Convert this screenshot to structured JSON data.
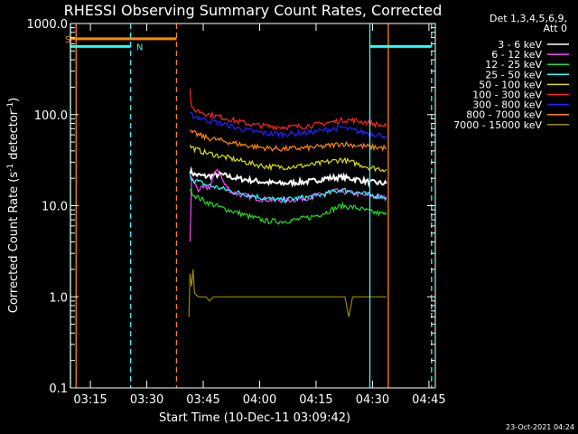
{
  "chart_data": {
    "type": "line",
    "title": "RHESSI Observing Summary Count Rates, Corrected",
    "xlabel": "Start Time (10-Dec-11 03:09:42)",
    "ylabel_parts": [
      "Corrected Count Rate (s",
      "-1",
      " detector",
      "-1",
      ")"
    ],
    "ylog": true,
    "ylim": [
      0.1,
      1000
    ],
    "xlim_minutes": [
      0,
      97
    ],
    "x_tick_minutes": [
      5.3,
      20.3,
      35.3,
      50.3,
      65.3,
      80.3,
      95.3
    ],
    "x_tick_labels": [
      "03:15",
      "03:30",
      "03:45",
      "04:00",
      "04:15",
      "04:30",
      "04:45"
    ],
    "y_tick_values": [
      1000,
      100,
      10,
      1,
      0.1
    ],
    "y_tick_labels": [
      "1000.0",
      "100.0",
      "10.0",
      "1.0",
      "0.1"
    ],
    "legend_header": [
      "Det 1,3,4,5,6,9,",
      "Att 0"
    ],
    "series": [
      {
        "name": "3 - 6 keV",
        "color": "#ffffff",
        "points": [
          [
            31.8,
            24
          ],
          [
            33,
            22
          ],
          [
            36,
            21
          ],
          [
            40,
            22
          ],
          [
            44,
            20
          ],
          [
            48,
            19
          ],
          [
            52,
            18
          ],
          [
            56,
            17.5
          ],
          [
            60,
            18
          ],
          [
            64,
            18.5
          ],
          [
            68,
            20
          ],
          [
            72,
            20.5
          ],
          [
            76,
            19.5
          ],
          [
            80,
            18
          ],
          [
            84,
            17.5
          ]
        ]
      },
      {
        "name": "6 - 12 keV",
        "color": "#ff44ff",
        "points": [
          [
            31.8,
            4
          ],
          [
            32.2,
            20
          ],
          [
            34,
            15
          ],
          [
            37,
            16
          ],
          [
            39,
            26
          ],
          [
            41,
            17
          ],
          [
            43,
            14
          ],
          [
            46,
            13
          ],
          [
            50,
            12
          ],
          [
            54,
            11.5
          ],
          [
            58,
            11.5
          ],
          [
            62,
            12
          ],
          [
            66,
            13
          ],
          [
            70,
            14.5
          ],
          [
            74,
            14
          ],
          [
            78,
            13
          ],
          [
            82,
            12.5
          ],
          [
            84,
            12
          ]
        ]
      },
      {
        "name": "12 - 25 keV",
        "color": "#22dd22",
        "points": [
          [
            31.8,
            15
          ],
          [
            33,
            13
          ],
          [
            36,
            11
          ],
          [
            40,
            9.5
          ],
          [
            44,
            8.5
          ],
          [
            48,
            7.5
          ],
          [
            52,
            6.8
          ],
          [
            56,
            6.7
          ],
          [
            60,
            7
          ],
          [
            64,
            7.5
          ],
          [
            68,
            8.5
          ],
          [
            72,
            10
          ],
          [
            76,
            9.5
          ],
          [
            80,
            8.5
          ],
          [
            84,
            8
          ]
        ]
      },
      {
        "name": "25 - 50 keV",
        "color": "#22ffff",
        "points": [
          [
            31.8,
            21
          ],
          [
            33,
            19
          ],
          [
            36,
            17
          ],
          [
            40,
            15.5
          ],
          [
            44,
            14
          ],
          [
            48,
            13
          ],
          [
            52,
            12
          ],
          [
            56,
            11.5
          ],
          [
            60,
            12
          ],
          [
            64,
            12.5
          ],
          [
            68,
            13.5
          ],
          [
            72,
            15
          ],
          [
            76,
            14
          ],
          [
            80,
            13
          ],
          [
            84,
            12.5
          ]
        ]
      },
      {
        "name": "50 - 100 keV",
        "color": "#dddd00",
        "points": [
          [
            31.8,
            45
          ],
          [
            33,
            42
          ],
          [
            36,
            38
          ],
          [
            40,
            35
          ],
          [
            44,
            32
          ],
          [
            48,
            29
          ],
          [
            52,
            27
          ],
          [
            56,
            26.5
          ],
          [
            60,
            27
          ],
          [
            64,
            28
          ],
          [
            68,
            30
          ],
          [
            72,
            32
          ],
          [
            76,
            29
          ],
          [
            80,
            26
          ],
          [
            84,
            25
          ]
        ]
      },
      {
        "name": "100 - 300 keV",
        "color": "#ff2222",
        "points": [
          [
            31.8,
            190
          ],
          [
            32.2,
            115
          ],
          [
            34,
            110
          ],
          [
            37,
            100
          ],
          [
            41,
            92
          ],
          [
            45,
            83
          ],
          [
            49,
            77
          ],
          [
            53,
            74
          ],
          [
            57,
            73
          ],
          [
            61,
            74
          ],
          [
            65,
            77
          ],
          [
            69,
            82
          ],
          [
            73,
            88
          ],
          [
            76,
            86
          ],
          [
            80,
            80
          ],
          [
            84,
            74
          ]
        ]
      },
      {
        "name": "300 - 800 keV",
        "color": "#2222ff",
        "points": [
          [
            31.8,
            100
          ],
          [
            33,
            96
          ],
          [
            36,
            88
          ],
          [
            40,
            80
          ],
          [
            44,
            72
          ],
          [
            48,
            66
          ],
          [
            52,
            62
          ],
          [
            56,
            61
          ],
          [
            60,
            62
          ],
          [
            64,
            64
          ],
          [
            68,
            68
          ],
          [
            72,
            72
          ],
          [
            76,
            66
          ],
          [
            80,
            62
          ],
          [
            84,
            58
          ]
        ]
      },
      {
        "name": "800 - 7000 keV",
        "color": "#ff8800",
        "points": [
          [
            31.8,
            64
          ],
          [
            33,
            62
          ],
          [
            36,
            56
          ],
          [
            40,
            52
          ],
          [
            44,
            48
          ],
          [
            48,
            45
          ],
          [
            52,
            43
          ],
          [
            56,
            42
          ],
          [
            60,
            42.5
          ],
          [
            64,
            43.5
          ],
          [
            68,
            45
          ],
          [
            72,
            48
          ],
          [
            76,
            46
          ],
          [
            80,
            44
          ],
          [
            84,
            43
          ]
        ]
      },
      {
        "name": "7000 - 15000 keV",
        "color": "#998800",
        "points": [
          [
            31.5,
            0.6
          ],
          [
            31.8,
            1.8
          ],
          [
            32.2,
            1.3
          ],
          [
            32.6,
            2
          ],
          [
            33,
            1.1
          ],
          [
            34,
            1
          ],
          [
            36,
            1
          ],
          [
            37,
            0.9
          ],
          [
            38,
            1
          ],
          [
            73,
            1
          ],
          [
            74,
            0.6
          ],
          [
            75,
            1
          ],
          [
            84,
            1
          ]
        ]
      }
    ],
    "bars": [
      {
        "label": "S",
        "color": "#ff8800",
        "x_start": 0,
        "x_end": 28.2,
        "y": 680
      },
      {
        "label": "N",
        "color": "#22ffff",
        "x_start": 0,
        "x_end": 16,
        "y": 560
      },
      {
        "label": "",
        "color": "#22ffff",
        "x_start": 79.6,
        "x_end": 96,
        "y": 560
      }
    ],
    "vlines": [
      {
        "color": "#22ffff",
        "x": 0,
        "style": "solid"
      },
      {
        "color": "#ff8800",
        "x": 1.5,
        "style": "solid"
      },
      {
        "color": "#22ffff",
        "x": 16,
        "style": "dashed"
      },
      {
        "color": "#ff8800",
        "x": 28.2,
        "style": "dashed"
      },
      {
        "color": "#22ffff",
        "x": 79.6,
        "style": "solid"
      },
      {
        "color": "#ff8800",
        "x": 84.5,
        "style": "solid"
      },
      {
        "color": "#22ffff",
        "x": 96,
        "style": "dashed"
      }
    ],
    "footer": "23-Oct-2021 04:24"
  }
}
